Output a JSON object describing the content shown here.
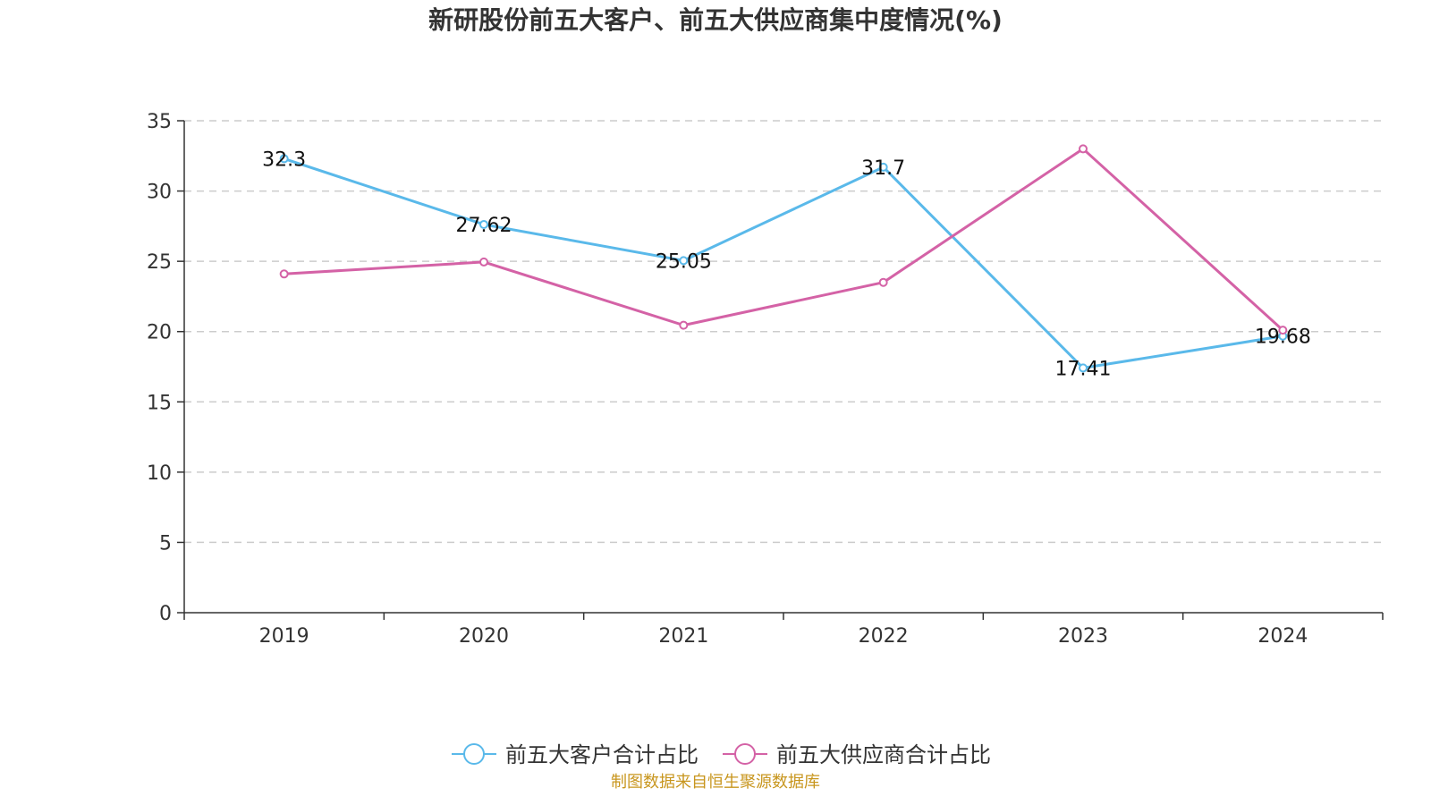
{
  "chart_data": {
    "type": "line",
    "title": "新研股份前五大客户、前五大供应商集中度情况(%)",
    "categories": [
      "2019",
      "2020",
      "2021",
      "2022",
      "2023",
      "2024"
    ],
    "series": [
      {
        "name": "前五大客户合计占比",
        "color": "#5ab9ea",
        "values": [
          32.3,
          27.62,
          25.05,
          31.7,
          17.41,
          19.68
        ],
        "labels": [
          "32.3",
          "27.62",
          "25.05",
          "31.7",
          "17.41",
          "19.68"
        ]
      },
      {
        "name": "前五大供应商合计占比",
        "color": "#d462a6",
        "values": [
          24.1,
          24.95,
          20.45,
          23.5,
          33.0,
          20.1
        ]
      }
    ],
    "ylim": [
      0,
      35
    ],
    "yticks": [
      "0",
      "5",
      "10",
      "15",
      "20",
      "25",
      "30",
      "35"
    ],
    "grid": true,
    "legend_position": "bottom"
  },
  "source": "制图数据来自恒生聚源数据库"
}
